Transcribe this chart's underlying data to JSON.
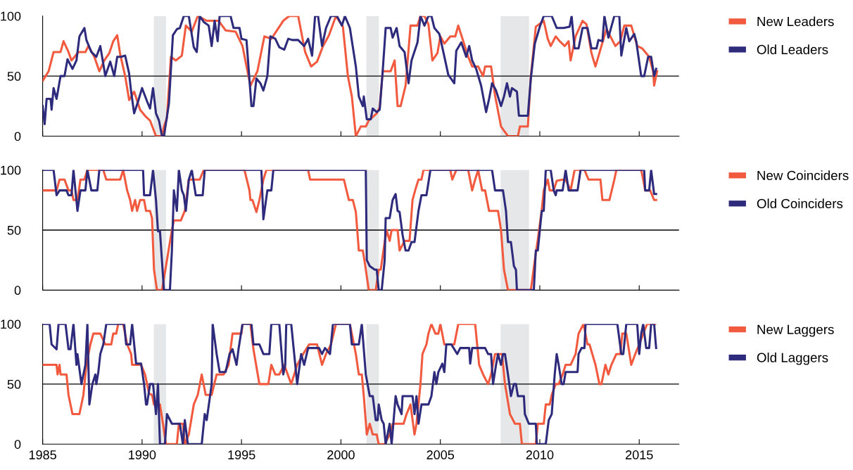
{
  "chart_data": [
    {
      "type": "line",
      "xlim": [
        1985,
        2017
      ],
      "xticks": [
        1985,
        1990,
        1995,
        2000,
        2005,
        2010,
        2015
      ],
      "ylim": [
        0,
        100
      ],
      "yticks": [
        0,
        50,
        100
      ],
      "tick_labels": "y",
      "legend": "right",
      "grid": false,
      "line_style": "solid",
      "marker": "none",
      "ref_lines": [
        {
          "axis": "y",
          "value": 50,
          "color": "#000000"
        }
      ],
      "bands": [
        {
          "axis": "x",
          "from": 1990.59,
          "to": 1991.21,
          "color": "#e6e7e8"
        },
        {
          "axis": "x",
          "from": 2001.28,
          "to": 2001.91,
          "color": "#e6e7e8"
        },
        {
          "axis": "x",
          "from": 2008.03,
          "to": 2009.46,
          "color": "#e6e7e8"
        }
      ],
      "series": [
        {
          "name": "New Leaders",
          "color": "#f15a3e",
          "x": [
            1985.0,
            1985.15,
            1985.3,
            1985.55,
            1985.9,
            1986.05,
            1986.3,
            1986.45,
            1986.8,
            1987.15,
            1987.3,
            1987.6,
            1987.85,
            1988.1,
            1988.35,
            1988.55,
            1988.75,
            1988.9,
            1989.15,
            1989.35,
            1989.6,
            1989.9,
            1990.2,
            1990.4,
            1990.7,
            1991.0,
            1991.1,
            1991.25,
            1991.45,
            1991.7,
            1992.0,
            1992.2,
            1992.5,
            1992.8,
            1993.25,
            1993.85,
            1994.2,
            1994.7,
            1995.05,
            1995.35,
            1995.45,
            1995.8,
            1996.15,
            1996.5,
            1997.1,
            1997.4,
            1997.85,
            1998.2,
            1998.5,
            1998.8,
            1999.1,
            1999.4,
            1999.75,
            2000.1,
            2000.35,
            2000.55,
            2000.75,
            2001.0,
            2001.25,
            2001.4,
            2001.8,
            2001.95,
            2002.1,
            2002.5,
            2002.7,
            2002.85,
            2003.0,
            2003.25,
            2003.5,
            2003.85,
            2004.0,
            2004.2,
            2004.4,
            2004.6,
            2004.85,
            2005.0,
            2005.2,
            2005.5,
            2005.75,
            2005.9,
            2006.15,
            2006.4,
            2006.6,
            2006.9,
            2007.15,
            2007.25,
            2007.55,
            2007.75,
            2008.05,
            2008.4,
            2008.9,
            2009.0,
            2009.4,
            2009.55,
            2009.8,
            2010.2,
            2010.4,
            2010.55,
            2010.8,
            2011.0,
            2011.25,
            2011.45,
            2011.55,
            2011.8,
            2012.15,
            2012.35,
            2012.6,
            2012.8,
            2013.1,
            2013.35,
            2013.55,
            2013.8,
            2014.05,
            2014.25,
            2014.6,
            2014.9,
            2015.15,
            2015.5,
            2015.7,
            2015.75,
            2015.9
          ],
          "values": [
            46,
            50,
            54,
            70,
            70,
            79,
            70,
            63,
            70,
            70,
            75,
            66,
            54,
            63,
            69,
            79,
            84,
            68,
            50,
            30,
            37,
            22,
            16,
            13,
            0,
            0,
            8,
            15,
            66,
            63,
            67,
            92,
            87,
            100,
            96,
            96,
            88,
            87,
            75,
            50,
            42,
            54,
            83,
            81,
            96,
            100,
            100,
            70,
            58,
            62,
            75,
            84,
            100,
            91,
            50,
            33,
            0,
            8,
            8,
            13,
            19,
            24,
            54,
            54,
            63,
            25,
            25,
            42,
            92,
            92,
            100,
            100,
            93,
            63,
            69,
            83,
            77,
            83,
            83,
            92,
            79,
            66,
            58,
            58,
            50,
            58,
            58,
            34,
            8,
            0,
            0,
            8,
            8,
            50,
            91,
            96,
            81,
            75,
            83,
            79,
            75,
            79,
            63,
            83,
            96,
            93,
            69,
            58,
            75,
            89,
            83,
            75,
            79,
            92,
            92,
            75,
            73,
            66,
            54,
            42,
            54
          ]
        },
        {
          "name": "Old Leaders",
          "color": "#2e2a7c",
          "x": [
            1985.0,
            1985.1,
            1985.2,
            1985.4,
            1985.45,
            1985.55,
            1985.7,
            1985.9,
            1986.1,
            1986.25,
            1986.5,
            1986.7,
            1986.85,
            1987.1,
            1987.2,
            1987.45,
            1987.7,
            1987.9,
            1988.15,
            1988.4,
            1988.6,
            1988.75,
            1988.95,
            1989.15,
            1989.35,
            1989.45,
            1989.6,
            1989.8,
            1990.0,
            1990.25,
            1990.4,
            1990.55,
            1990.7,
            1990.85,
            1991.0,
            1991.1,
            1991.35,
            1991.55,
            1991.75,
            1991.9,
            1992.1,
            1992.35,
            1992.6,
            1992.75,
            1992.9,
            1993.1,
            1993.35,
            1993.5,
            1993.65,
            1993.8,
            1993.9,
            1994.45,
            1994.6,
            1994.9,
            1995.0,
            1995.25,
            1995.5,
            1995.6,
            1995.75,
            1995.95,
            1996.1,
            1996.3,
            1996.45,
            1996.7,
            1996.9,
            1997.15,
            1997.35,
            1997.55,
            1997.85,
            1998.15,
            1998.35,
            1998.55,
            1998.7,
            1998.85,
            1999.05,
            1999.25,
            1999.5,
            1999.8,
            2000.05,
            2000.2,
            2000.45,
            2000.75,
            2000.9,
            2001.1,
            2001.15,
            2001.3,
            2001.5,
            2001.6,
            2001.8,
            2001.95,
            2002.1,
            2002.25,
            2002.5,
            2002.6,
            2002.8,
            2002.95,
            2003.2,
            2003.4,
            2003.55,
            2003.85,
            2004.0,
            2004.2,
            2004.4,
            2004.55,
            2004.7,
            2004.95,
            2005.15,
            2005.4,
            2005.7,
            2005.8,
            2006.05,
            2006.3,
            2006.45,
            2006.6,
            2006.8,
            2007.05,
            2007.3,
            2007.45,
            2007.6,
            2007.8,
            2008.05,
            2008.2,
            2008.35,
            2008.5,
            2008.6,
            2008.85,
            2008.95,
            2009.4,
            2009.55,
            2009.75,
            2010.0,
            2010.2,
            2010.6,
            2010.85,
            2011.2,
            2011.5,
            2011.6,
            2011.75,
            2011.95,
            2012.15,
            2012.4,
            2012.6,
            2012.85,
            2012.95,
            2013.15,
            2013.25,
            2013.45,
            2013.75,
            2014.0,
            2014.1,
            2014.35,
            2014.5,
            2014.75,
            2014.85,
            2015.1,
            2015.25,
            2015.45,
            2015.6,
            2015.75,
            2015.85
          ],
          "values": [
            25,
            10,
            31,
            31,
            22,
            40,
            31,
            50,
            50,
            64,
            56,
            63,
            83,
            90,
            80,
            70,
            66,
            75,
            50,
            62,
            50,
            66,
            66,
            67,
            52,
            37,
            19,
            29,
            40,
            29,
            23,
            40,
            19,
            13,
            0,
            0,
            27,
            84,
            89,
            90,
            100,
            100,
            74,
            70,
            100,
            95,
            92,
            75,
            96,
            79,
            100,
            100,
            90,
            90,
            81,
            80,
            25,
            25,
            48,
            44,
            38,
            50,
            83,
            81,
            74,
            72,
            81,
            80,
            80,
            75,
            81,
            67,
            100,
            100,
            75,
            90,
            100,
            100,
            92,
            100,
            90,
            58,
            33,
            25,
            33,
            14,
            14,
            23,
            20,
            22,
            54,
            90,
            90,
            82,
            90,
            75,
            70,
            44,
            63,
            78,
            100,
            92,
            100,
            100,
            90,
            85,
            70,
            51,
            44,
            71,
            78,
            66,
            75,
            63,
            56,
            42,
            20,
            31,
            44,
            38,
            25,
            33,
            44,
            33,
            40,
            37,
            17,
            17,
            48,
            77,
            91,
            100,
            100,
            90,
            90,
            91,
            100,
            73,
            73,
            90,
            90,
            73,
            73,
            80,
            79,
            100,
            82,
            100,
            100,
            67,
            90,
            79,
            85,
            79,
            50,
            50,
            66,
            66,
            50,
            56
          ]
        }
      ]
    },
    {
      "type": "line",
      "xlim": [
        1985,
        2017
      ],
      "xticks": [
        1985,
        1990,
        1995,
        2000,
        2005,
        2010,
        2015
      ],
      "ylim": [
        0,
        100
      ],
      "yticks": [
        0,
        50,
        100
      ],
      "tick_labels": "y",
      "legend": "right",
      "grid": false,
      "line_style": "solid",
      "marker": "none",
      "ref_lines": [
        {
          "axis": "y",
          "value": 50,
          "color": "#000000"
        }
      ],
      "bands": [
        {
          "axis": "x",
          "from": 1990.59,
          "to": 1991.21,
          "color": "#e6e7e8"
        },
        {
          "axis": "x",
          "from": 2001.28,
          "to": 2001.91,
          "color": "#e6e7e8"
        },
        {
          "axis": "x",
          "from": 2008.03,
          "to": 2009.46,
          "color": "#e6e7e8"
        }
      ],
      "series": [
        {
          "name": "New Coinciders",
          "color": "#f15a3e",
          "x": [
            1985.0,
            1985.7,
            1985.85,
            1986.1,
            1986.3,
            1986.45,
            1986.55,
            1986.75,
            1986.9,
            1987.1,
            1987.25,
            1988.05,
            1988.2,
            1988.9,
            1989.05,
            1989.25,
            1989.4,
            1989.5,
            1989.65,
            1989.75,
            1989.9,
            1990.1,
            1990.2,
            1990.4,
            1990.5,
            1990.6,
            1990.75,
            1991.0,
            1991.5,
            1991.6,
            1991.95,
            1992.15,
            1992.35,
            1992.9,
            1993.1,
            1995.15,
            1995.4,
            1995.45,
            1995.55,
            1995.75,
            1995.9,
            1996.1,
            1996.25,
            1998.35,
            1998.45,
            2000.15,
            2000.4,
            2000.6,
            2000.75,
            2000.9,
            2001.1,
            2001.2,
            2001.4,
            2001.75,
            2001.9,
            2002.0,
            2002.2,
            2002.3,
            2002.45,
            2002.55,
            2002.85,
            2002.95,
            2003.2,
            2003.45,
            2003.6,
            2003.75,
            2003.9,
            2004.05,
            2004.15,
            2005.5,
            2005.6,
            2005.8,
            2006.4,
            2006.6,
            2006.75,
            2006.9,
            2007.1,
            2007.25,
            2007.45,
            2007.9,
            2008.05,
            2008.2,
            2008.4,
            2009.55,
            2009.75,
            2009.9,
            2010.1,
            2010.2,
            2010.4,
            2010.5,
            2010.7,
            2010.85,
            2011.15,
            2011.3,
            2011.55,
            2011.75,
            2012.25,
            2012.45,
            2013.05,
            2013.15,
            2013.5,
            2013.75,
            2013.85,
            2015.1,
            2015.2,
            2015.3,
            2015.55,
            2015.75,
            2015.85
          ],
          "values": [
            83,
            83,
            92,
            92,
            83,
            83,
            75,
            75,
            92,
            92,
            100,
            100,
            92,
            92,
            100,
            83,
            75,
            66,
            75,
            66,
            75,
            75,
            66,
            66,
            60,
            17,
            0,
            0,
            50,
            58,
            58,
            66,
            92,
            92,
            100,
            100,
            83,
            75,
            75,
            65,
            75,
            92,
            100,
            100,
            92,
            92,
            75,
            75,
            65,
            33,
            33,
            23,
            0,
            0,
            17,
            17,
            40,
            50,
            41,
            50,
            50,
            33,
            41,
            41,
            75,
            84,
            92,
            92,
            100,
            100,
            92,
            100,
            100,
            83,
            92,
            100,
            83,
            83,
            66,
            66,
            50,
            17,
            0,
            0,
            25,
            42,
            67,
            83,
            92,
            83,
            83,
            91,
            92,
            92,
            83,
            100,
            100,
            92,
            92,
            75,
            75,
            92,
            100,
            100,
            92,
            83,
            83,
            75,
            75
          ]
        },
        {
          "name": "Old Coinciders",
          "color": "#2e2a7c",
          "x": [
            1985.0,
            1985.55,
            1985.7,
            1985.85,
            1986.2,
            1986.3,
            1986.45,
            1986.55,
            1986.75,
            1986.9,
            1987.15,
            1987.25,
            1987.45,
            1987.75,
            1987.85,
            1990.05,
            1990.1,
            1990.4,
            1990.55,
            1990.7,
            1990.8,
            1990.9,
            1991.1,
            1991.4,
            1991.5,
            1991.6,
            1991.75,
            1991.85,
            1992.0,
            1992.1,
            1992.2,
            1992.35,
            1992.5,
            1992.7,
            1993.05,
            1993.15,
            1996.0,
            1996.1,
            1996.3,
            1996.5,
            1996.6,
            2001.25,
            2001.3,
            2001.45,
            2001.7,
            2001.8,
            2001.9,
            2002.05,
            2002.2,
            2002.25,
            2002.45,
            2002.6,
            2002.75,
            2002.85,
            2002.95,
            2003.1,
            2003.25,
            2003.4,
            2003.55,
            2003.7,
            2003.9,
            2004.05,
            2004.3,
            2004.5,
            2007.6,
            2007.75,
            2008.15,
            2008.3,
            2008.4,
            2008.55,
            2008.7,
            2008.8,
            2008.85,
            2009.7,
            2009.8,
            2009.9,
            2010.1,
            2010.2,
            2010.3,
            2010.55,
            2010.7,
            2010.8,
            2010.85,
            2011.15,
            2011.3,
            2011.45,
            2011.9,
            2012.05,
            2015.25,
            2015.3,
            2015.5,
            2015.6,
            2015.75,
            2015.85
          ],
          "values": [
            100,
            100,
            79,
            83,
            83,
            79,
            79,
            100,
            66,
            83,
            83,
            100,
            83,
            83,
            100,
            100,
            79,
            79,
            100,
            75,
            49,
            49,
            0,
            0,
            33,
            83,
            66,
            100,
            83,
            79,
            66,
            92,
            100,
            79,
            79,
            100,
            100,
            59,
            83,
            83,
            100,
            100,
            25,
            20,
            17,
            17,
            0,
            0,
            25,
            60,
            60,
            75,
            80,
            66,
            65,
            46,
            33,
            33,
            40,
            40,
            66,
            79,
            79,
            100,
            100,
            83,
            83,
            66,
            40,
            40,
            20,
            17,
            0,
            0,
            33,
            33,
            66,
            66,
            100,
            100,
            83,
            79,
            83,
            83,
            100,
            83,
            83,
            100,
            100,
            83,
            83,
            100,
            80,
            80
          ]
        }
      ]
    },
    {
      "type": "line",
      "xlim": [
        1985,
        2017
      ],
      "xticks": [
        1985,
        1990,
        1995,
        2000,
        2005,
        2010,
        2015
      ],
      "ylim": [
        0,
        100
      ],
      "yticks": [
        0,
        50,
        100
      ],
      "legend": "right",
      "grid": false,
      "line_style": "solid",
      "marker": "none",
      "ref_lines": [
        {
          "axis": "y",
          "value": 50,
          "color": "#000000"
        }
      ],
      "bands": [
        {
          "axis": "x",
          "from": 1990.59,
          "to": 1991.21,
          "color": "#e6e7e8"
        },
        {
          "axis": "x",
          "from": 2001.28,
          "to": 2001.91,
          "color": "#e6e7e8"
        },
        {
          "axis": "x",
          "from": 2008.03,
          "to": 2009.46,
          "color": "#e6e7e8"
        }
      ],
      "series": [
        {
          "name": "New Laggers",
          "color": "#f15a3e",
          "x": [
            1985.0,
            1985.7,
            1985.75,
            1985.85,
            1985.9,
            1986.2,
            1986.3,
            1986.5,
            1986.85,
            1987.05,
            1987.2,
            1987.4,
            1987.55,
            1987.9,
            1988.15,
            1988.45,
            1988.55,
            1988.7,
            1988.8,
            1989.05,
            1989.25,
            1989.45,
            1989.5,
            1989.95,
            1990.15,
            1990.35,
            1990.5,
            1990.6,
            1990.9,
            1991.05,
            1991.2,
            1991.75,
            1991.85,
            1992.05,
            1992.15,
            1992.35,
            1992.6,
            1992.8,
            1993.0,
            1993.2,
            1993.5,
            1993.75,
            1994.1,
            1994.35,
            1994.55,
            1995.0,
            1995.05,
            1995.45,
            1995.6,
            1995.9,
            1996.35,
            1996.5,
            1996.7,
            1996.9,
            1997.15,
            1997.5,
            1997.8,
            1998.1,
            1998.4,
            1998.8,
            1999.05,
            1999.25,
            1999.5,
            1999.75,
            2000.45,
            2000.75,
            2000.9,
            2001.05,
            2001.15,
            2001.3,
            2001.45,
            2001.6,
            2001.8,
            2001.9,
            2002.2,
            2002.45,
            2002.6,
            2003.15,
            2003.3,
            2003.5,
            2003.7,
            2003.8,
            2004.0,
            2004.1,
            2004.3,
            2004.4,
            2004.55,
            2004.75,
            2004.9,
            2005.0,
            2005.2,
            2005.7,
            2005.9,
            2006.75,
            2006.95,
            2007.15,
            2007.4,
            2007.55,
            2007.75,
            2008.1,
            2008.25,
            2008.5,
            2008.75,
            2009.0,
            2009.1,
            2009.8,
            2009.9,
            2010.2,
            2010.3,
            2010.5,
            2010.6,
            2010.8,
            2010.95,
            2011.15,
            2011.3,
            2011.55,
            2011.8,
            2011.95,
            2012.2,
            2012.4,
            2012.5,
            2012.8,
            2013.0,
            2013.1,
            2013.3,
            2013.45,
            2013.6,
            2013.85,
            2014.05,
            2014.15,
            2014.35,
            2014.6,
            2014.8,
            2015.0,
            2015.2,
            2015.4,
            2015.8
          ],
          "values": [
            66,
            66,
            58,
            66,
            58,
            58,
            41,
            25,
            25,
            41,
            66,
            83,
            92,
            92,
            83,
            83,
            92,
            92,
            100,
            100,
            83,
            75,
            66,
            66,
            58,
            42,
            41,
            33,
            33,
            17,
            0,
            0,
            17,
            17,
            0,
            8,
            33,
            41,
            58,
            41,
            41,
            58,
            58,
            66,
            92,
            92,
            100,
            100,
            79,
            50,
            50,
            66,
            58,
            58,
            66,
            50,
            66,
            75,
            83,
            83,
            66,
            75,
            83,
            100,
            100,
            75,
            58,
            58,
            40,
            8,
            17,
            8,
            8,
            0,
            0,
            8,
            17,
            17,
            25,
            33,
            8,
            17,
            50,
            75,
            83,
            92,
            100,
            92,
            92,
            100,
            83,
            83,
            100,
            100,
            66,
            58,
            50,
            58,
            75,
            75,
            50,
            25,
            17,
            17,
            0,
            0,
            17,
            17,
            33,
            33,
            41,
            50,
            50,
            58,
            66,
            66,
            75,
            92,
            100,
            83,
            83,
            66,
            50,
            50,
            66,
            58,
            66,
            75,
            75,
            92,
            92,
            66,
            75,
            83,
            92,
            100,
            100
          ]
        },
        {
          "name": "Old Laggers",
          "color": "#2e2a7c",
          "x": [
            1985.0,
            1985.35,
            1985.45,
            1985.7,
            1985.8,
            1986.15,
            1986.3,
            1986.4,
            1986.55,
            1986.7,
            1986.75,
            1986.95,
            1987.05,
            1987.15,
            1987.25,
            1987.35,
            1987.5,
            1987.65,
            1987.7,
            1987.8,
            1987.9,
            1988.05,
            1988.2,
            1989.1,
            1989.2,
            1989.4,
            1989.5,
            1989.7,
            1989.95,
            1990.1,
            1990.2,
            1990.25,
            1990.4,
            1990.55,
            1990.7,
            1990.8,
            1990.9,
            1991.15,
            1991.25,
            1991.5,
            1991.9,
            1992.05,
            1992.15,
            1992.3,
            1993.0,
            1993.15,
            1993.25,
            1993.5,
            1993.55,
            1993.75,
            1993.9,
            1994.2,
            1994.4,
            1994.55,
            1994.75,
            1994.85,
            1995.05,
            1995.5,
            1995.6,
            1995.9,
            1996.1,
            1996.4,
            1996.5,
            1996.9,
            1997.1,
            1997.2,
            1997.25,
            1997.5,
            1997.8,
            1998.0,
            1998.15,
            1998.35,
            1998.9,
            1999.05,
            1999.2,
            1999.45,
            1999.6,
            2000.45,
            2000.55,
            2000.9,
            2001.05,
            2001.15,
            2001.25,
            2001.45,
            2001.6,
            2001.75,
            2001.85,
            2001.9,
            2002.05,
            2002.15,
            2002.25,
            2002.45,
            2002.55,
            2002.75,
            2002.85,
            2003.05,
            2003.1,
            2003.6,
            2003.7,
            2003.8,
            2003.9,
            2004.05,
            2004.4,
            2004.55,
            2004.7,
            2004.8,
            2004.9,
            2005.1,
            2005.2,
            2005.3,
            2005.55,
            2005.85,
            2006.0,
            2006.45,
            2006.5,
            2006.6,
            2007.25,
            2007.4,
            2007.55,
            2007.65,
            2007.8,
            2007.9,
            2008.05,
            2008.15,
            2008.25,
            2008.4,
            2008.55,
            2008.7,
            2008.8,
            2008.9,
            2009.2,
            2009.25,
            2009.45,
            2009.8,
            2009.85,
            2010.3,
            2010.45,
            2010.6,
            2010.75,
            2010.85,
            2010.95,
            2011.1,
            2011.2,
            2011.3,
            2011.9,
            2011.95,
            2012.1,
            2012.25,
            2012.3,
            2013.9,
            2014.1,
            2014.2,
            2014.35,
            2014.9,
            2015.0,
            2015.1,
            2015.2,
            2015.35,
            2015.5,
            2015.6,
            2015.75,
            2015.85
          ],
          "values": [
            100,
            100,
            83,
            79,
            100,
            100,
            79,
            79,
            100,
            66,
            75,
            50,
            58,
            66,
            100,
            33,
            50,
            58,
            50,
            60,
            75,
            83,
            100,
            100,
            83,
            83,
            100,
            67,
            67,
            50,
            33,
            33,
            50,
            50,
            25,
            50,
            0,
            0,
            25,
            17,
            17,
            0,
            20,
            0,
            0,
            25,
            20,
            50,
            100,
            75,
            60,
            60,
            75,
            79,
            66,
            79,
            100,
            100,
            83,
            83,
            75,
            75,
            100,
            100,
            58,
            66,
            100,
            100,
            50,
            75,
            66,
            80,
            80,
            75,
            80,
            75,
            100,
            100,
            83,
            83,
            100,
            79,
            58,
            40,
            40,
            20,
            20,
            33,
            20,
            17,
            0,
            17,
            0,
            40,
            33,
            25,
            40,
            40,
            25,
            40,
            17,
            33,
            33,
            40,
            60,
            50,
            60,
            67,
            60,
            83,
            83,
            75,
            80,
            80,
            67,
            80,
            80,
            75,
            75,
            50,
            66,
            75,
            66,
            75,
            75,
            58,
            40,
            50,
            50,
            40,
            40,
            25,
            17,
            17,
            0,
            0,
            20,
            25,
            58,
            75,
            66,
            50,
            50,
            60,
            60,
            75,
            80,
            80,
            100,
            100,
            75,
            75,
            100,
            100,
            75,
            92,
            100,
            80,
            80,
            100,
            100,
            80
          ]
        }
      ]
    }
  ]
}
